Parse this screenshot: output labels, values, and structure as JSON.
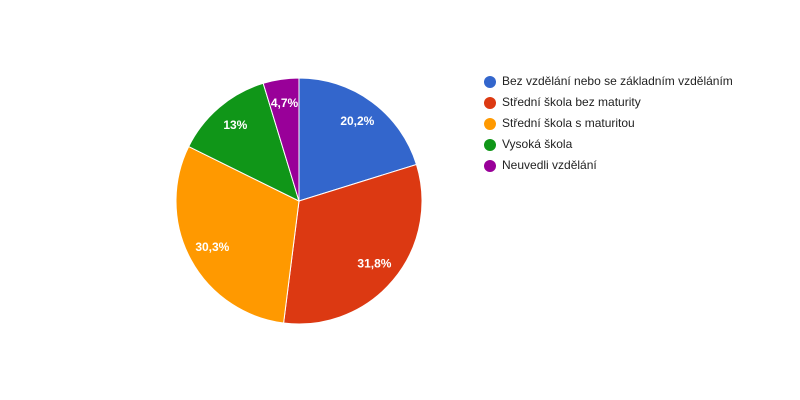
{
  "chart_data": {
    "type": "pie",
    "categories": [
      "Bez vzdělání nebo se základním vzděláním",
      "Střední škola bez maturity",
      "Střední škola s maturitou",
      "Vysoká škola",
      "Neuvedli vzdělání"
    ],
    "values": [
      20.2,
      31.8,
      30.3,
      13,
      4.7
    ],
    "value_labels": [
      "20,2%",
      "31,8%",
      "30,3%",
      "13%",
      "4,7%"
    ],
    "colors": [
      "#3366cc",
      "#dc3912",
      "#ff9900",
      "#109618",
      "#990099"
    ],
    "legend": "right"
  }
}
